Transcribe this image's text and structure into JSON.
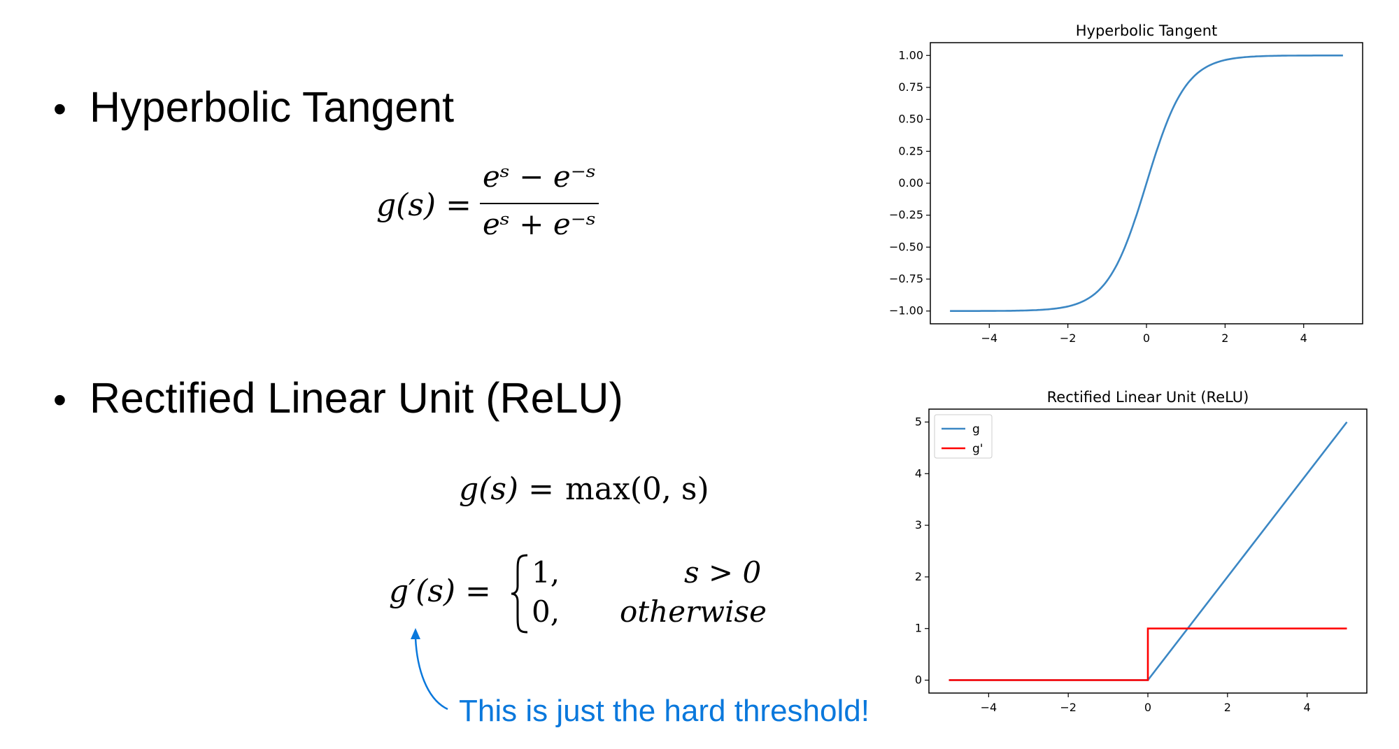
{
  "bullets": [
    {
      "text": "Hyperbolic Tangent"
    },
    {
      "text": "Rectified Linear Unit (ReLU)"
    }
  ],
  "formulas": {
    "tanh_lhs": "g(s) =",
    "tanh_num": "eˢ − e⁻ˢ",
    "tanh_den": "eˢ + e⁻ˢ",
    "relu_lhs": "g(s) =",
    "relu_rhs": "max(0, s)",
    "deriv_lhs": "g′(s) =",
    "case1_val": "1,",
    "case1_cond": "s > 0",
    "case2_val": "0,",
    "case2_cond": "otherwise"
  },
  "annotation": "This is just the hard threshold!",
  "colors": {
    "blue": "#3b87c4",
    "red": "#ff0000",
    "annotation": "#0a78dc"
  },
  "chart_data": [
    {
      "type": "line",
      "title": "Hyperbolic Tangent",
      "xlabel": "",
      "ylabel": "",
      "xlim": [
        -5.5,
        5.5
      ],
      "ylim": [
        -1.1,
        1.1
      ],
      "xticks": [
        -4,
        -2,
        0,
        2,
        4
      ],
      "xtick_labels": [
        "−4",
        "−2",
        "0",
        "2",
        "4"
      ],
      "yticks": [
        1.0,
        0.75,
        0.5,
        0.25,
        0.0,
        -0.25,
        -0.5,
        -0.75,
        -1.0
      ],
      "ytick_labels": [
        "1.00",
        "0.75",
        "0.50",
        "0.25",
        "0.00",
        "−0.25",
        "−0.50",
        "−0.75",
        "−1.00"
      ],
      "series": [
        {
          "function": "tanh",
          "x_range": [
            -5,
            5
          ],
          "color": "#3b87c4"
        }
      ],
      "grid": false
    },
    {
      "type": "line",
      "title": "Rectified Linear Unit (ReLU)",
      "xlabel": "",
      "ylabel": "",
      "xlim": [
        -5.5,
        5.5
      ],
      "ylim": [
        -0.25,
        5.25
      ],
      "xticks": [
        -4,
        -2,
        0,
        2,
        4
      ],
      "xtick_labels": [
        "−4",
        "−2",
        "0",
        "2",
        "4"
      ],
      "yticks": [
        0,
        1,
        2,
        3,
        4,
        5
      ],
      "ytick_labels": [
        "0",
        "1",
        "2",
        "3",
        "4",
        "5"
      ],
      "series": [
        {
          "name": "g",
          "color": "#3b87c4",
          "x": [
            -5,
            0,
            5
          ],
          "y": [
            0,
            0,
            5
          ]
        },
        {
          "name": "g'",
          "color": "#ff0000",
          "x": [
            -5,
            0,
            0,
            5
          ],
          "y": [
            0,
            0,
            1,
            1
          ]
        }
      ],
      "legend": "upper-left",
      "grid": false
    }
  ]
}
